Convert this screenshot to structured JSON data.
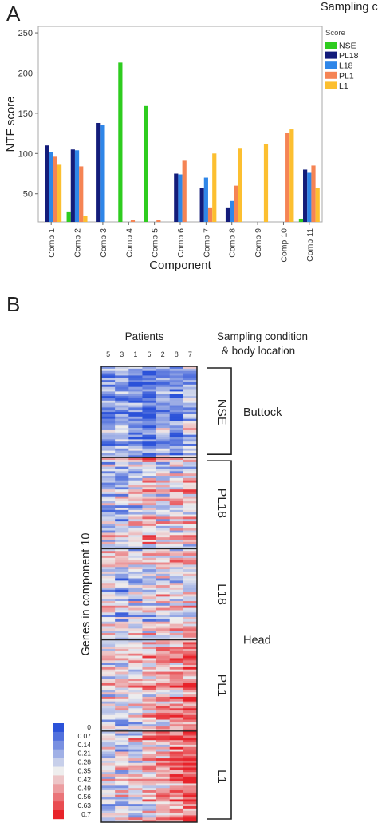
{
  "panel_a": {
    "letter": "A"
  },
  "panel_b": {
    "letter": "B"
  },
  "chart_data": [
    {
      "type": "bar",
      "ylabel": "NTF score",
      "xlabel": "Component",
      "ylim": [
        15,
        258
      ],
      "yticks": [
        50,
        100,
        150,
        200,
        250
      ],
      "grid": false,
      "legend": {
        "title": "Sampling condition",
        "subtitle": "Score",
        "placement": "top-right outside"
      },
      "categories": [
        "Comp 1",
        "Comp 2",
        "Comp 3",
        "Comp 4",
        "Comp 5",
        "Comp 6",
        "Comp 7",
        "Comp 8",
        "Comp 9",
        "Comp 10",
        "Comp 11"
      ],
      "series": [
        {
          "name": "NSE",
          "color": "#2ecc1f",
          "values": [
            null,
            28,
            null,
            213,
            159,
            null,
            null,
            null,
            null,
            null,
            19
          ]
        },
        {
          "name": "PL18",
          "color": "#131c7a",
          "values": [
            110,
            105,
            138,
            null,
            null,
            75,
            57,
            33,
            null,
            null,
            80
          ]
        },
        {
          "name": "L18",
          "color": "#2f86e8",
          "values": [
            102,
            104,
            135,
            null,
            null,
            74,
            70,
            41,
            null,
            null,
            76
          ]
        },
        {
          "name": "PL1",
          "color": "#f58454",
          "values": [
            96,
            84,
            null,
            17,
            17,
            91,
            33,
            60,
            null,
            126,
            85
          ]
        },
        {
          "name": "L1",
          "color": "#fcbf30",
          "values": [
            86,
            22,
            null,
            null,
            null,
            null,
            100,
            106,
            112,
            130,
            57
          ]
        }
      ]
    },
    {
      "type": "heatmap",
      "x_title": "Patients",
      "patients": [
        "5",
        "3",
        "1",
        "6",
        "2",
        "8",
        "7"
      ],
      "y_title": "Genes in component 10",
      "right_title_line1": "Sampling condition",
      "right_title_line2": "& body location",
      "groups": [
        {
          "condition": "NSE",
          "location": "Buttock",
          "trend": [
            -0.22,
            -0.18,
            -0.26,
            -0.32,
            -0.2,
            -0.26,
            -0.12
          ]
        },
        {
          "condition": "PL18",
          "location": "",
          "trend": [
            -0.08,
            -0.12,
            -0.02,
            0.05,
            0.0,
            0.02,
            0.04
          ]
        },
        {
          "condition": "L18",
          "location": "",
          "trend": [
            0.0,
            -0.08,
            -0.04,
            -0.02,
            0.02,
            0.0,
            0.02
          ]
        },
        {
          "condition": "PL1",
          "location": "",
          "trend": [
            0.02,
            0.0,
            0.04,
            0.08,
            0.16,
            0.2,
            0.26
          ]
        },
        {
          "condition": "L1",
          "location": "",
          "trend": [
            -0.04,
            -0.06,
            0.0,
            0.06,
            0.12,
            0.2,
            0.28
          ]
        }
      ],
      "head_location": "Head",
      "colorbar": {
        "ticks": [
          "0",
          "0.07",
          "0.14",
          "0.21",
          "0.28",
          "0.35",
          "0.42",
          "0.49",
          "0.56",
          "0.63",
          "0.7"
        ],
        "low_color": "#2b52d9",
        "mid_color": "#eeeeee",
        "high_color": "#e8232a"
      }
    }
  ]
}
